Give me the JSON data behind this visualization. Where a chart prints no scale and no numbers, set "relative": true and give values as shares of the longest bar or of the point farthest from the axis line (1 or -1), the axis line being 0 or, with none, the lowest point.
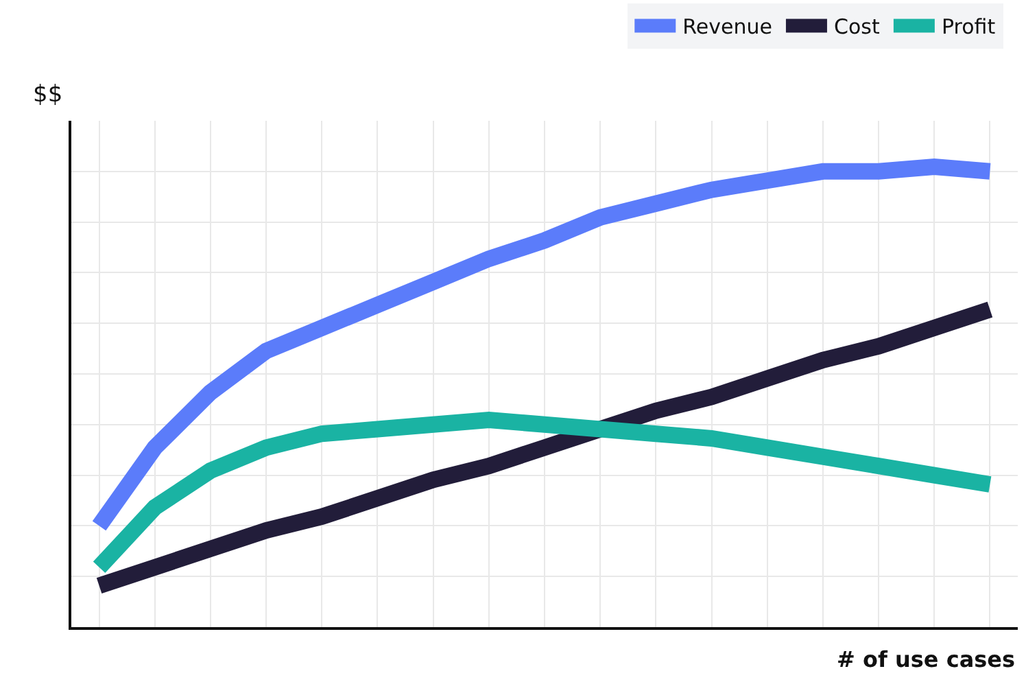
{
  "chart_data": {
    "type": "line",
    "relative": true,
    "xlabel": "# of use cases",
    "ylabel": "$$",
    "categories": [
      null,
      null,
      null,
      null,
      null,
      null,
      null,
      null,
      null,
      null,
      null,
      null,
      null,
      null,
      null,
      null,
      null
    ],
    "series": [
      {
        "name": "Revenue",
        "color": "#5b7cfa",
        "values": [
          0.22,
          0.39,
          0.51,
          0.6,
          0.65,
          0.7,
          0.75,
          0.8,
          0.84,
          0.89,
          0.92,
          0.95,
          0.97,
          0.99,
          0.99,
          1,
          0.99
        ]
      },
      {
        "name": "Cost",
        "color": "#221d3a",
        "values": [
          0.09,
          0.13,
          0.17,
          0.21,
          0.24,
          0.28,
          0.32,
          0.35,
          0.39,
          0.43,
          0.47,
          0.5,
          0.54,
          0.58,
          0.61,
          0.65,
          0.69
        ]
      },
      {
        "name": "Profit",
        "color": "#1ab3a3",
        "values": [
          0.13,
          0.26,
          0.34,
          0.39,
          0.42,
          0.43,
          0.44,
          0.45,
          0.44,
          0.43,
          0.42,
          0.41,
          0.39,
          0.37,
          0.35,
          0.33,
          0.31
        ]
      }
    ],
    "grid": true,
    "legend": "top right",
    "marker": "none",
    "line_style": "solid"
  }
}
